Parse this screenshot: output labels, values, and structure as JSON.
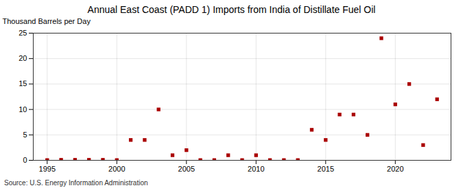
{
  "chart_data": {
    "type": "scatter",
    "title": "Annual East Coast (PADD 1) Imports from India of Distillate Fuel Oil",
    "ylabel": "Thousand Barrels per Day",
    "source": "Source: U.S. Energy Information Administration",
    "x": [
      1995,
      1996,
      1997,
      1998,
      1999,
      2000,
      2001,
      2002,
      2003,
      2004,
      2005,
      2006,
      2007,
      2008,
      2009,
      2010,
      2011,
      2012,
      2013,
      2014,
      2015,
      2016,
      2017,
      2018,
      2019,
      2020,
      2021,
      2022,
      2023
    ],
    "values": [
      0.05,
      0.1,
      0.1,
      0.1,
      0.1,
      0.05,
      4.0,
      4.0,
      10.0,
      1.0,
      2.0,
      0.05,
      0.05,
      1.0,
      0.05,
      1.0,
      0.05,
      0.05,
      0.05,
      6.0,
      4.0,
      9.0,
      9.0,
      5.0,
      24.0,
      11.0,
      15.0,
      3.0,
      12.0
    ],
    "color": "#aa0000",
    "marker": "square",
    "xlim": [
      1994.0,
      2024.0
    ],
    "xticks": [
      1995,
      2000,
      2005,
      2010,
      2015,
      2020
    ],
    "ylim": [
      0,
      25
    ],
    "yticks": [
      0,
      5,
      10,
      15,
      20,
      25
    ],
    "grid": true
  }
}
